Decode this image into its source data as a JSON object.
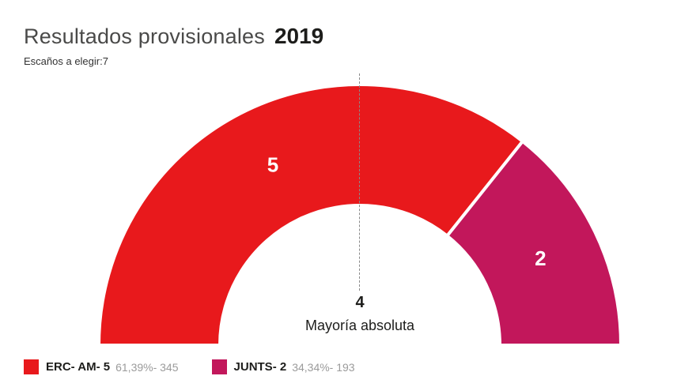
{
  "header": {
    "title": "Resultados provisionales",
    "year": "2019",
    "subtitle": "Escaños a elegir:7"
  },
  "chart_data": {
    "type": "pie",
    "subtype": "hemicycle-donut",
    "total_seats": 7,
    "start_angle_deg": 180,
    "end_angle_deg": 0,
    "majority": {
      "seats_label": "4",
      "text": "Mayoría absoluta"
    },
    "series": [
      {
        "name": "ERC- AM",
        "seats": 5,
        "seat_label": "5",
        "percent": 61.39,
        "votes": 345,
        "color": "#e8191c",
        "legend_label": "ERC- AM- 5",
        "legend_detail": "61,39%- 345"
      },
      {
        "name": "JUNTS",
        "seats": 2,
        "seat_label": "2",
        "percent": 34.34,
        "votes": 193,
        "color": "#c2175b",
        "legend_label": "JUNTS- 2",
        "legend_detail": "34,34%- 193"
      }
    ]
  }
}
